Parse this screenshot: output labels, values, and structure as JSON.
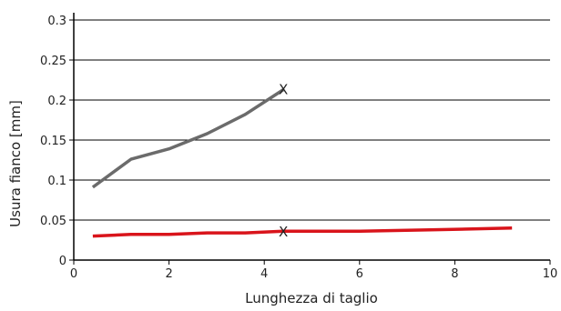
{
  "chart_data": {
    "type": "line",
    "xlabel": "Lunghezza di taglio",
    "ylabel": "Usura fianco [mm]",
    "xlim": [
      0,
      10
    ],
    "ylim": [
      0,
      0.3
    ],
    "x_ticks": [
      "0",
      "2",
      "4",
      "6",
      "8",
      "10"
    ],
    "y_ticks": [
      "0",
      "0.05",
      "0.1",
      "0.15",
      "0.2",
      "0.25",
      "0.3"
    ],
    "grid": "horizontal",
    "legend": "none",
    "end_marker": "X",
    "series": [
      {
        "color": "#6b6b6b",
        "x": [
          0.4,
          1.2,
          2.0,
          2.8,
          3.6,
          4.4
        ],
        "y": [
          0.091,
          0.126,
          0.139,
          0.158,
          0.182,
          0.213
        ],
        "end_marker": true
      },
      {
        "color": "#d9141b",
        "x": [
          0.4,
          1.2,
          2.0,
          2.8,
          3.6,
          4.4,
          6.0,
          7.6,
          9.2
        ],
        "y": [
          0.03,
          0.032,
          0.032,
          0.034,
          0.034,
          0.036,
          0.036,
          0.038,
          0.04
        ],
        "marker_x": 4.4,
        "marker_y": 0.035
      }
    ]
  }
}
